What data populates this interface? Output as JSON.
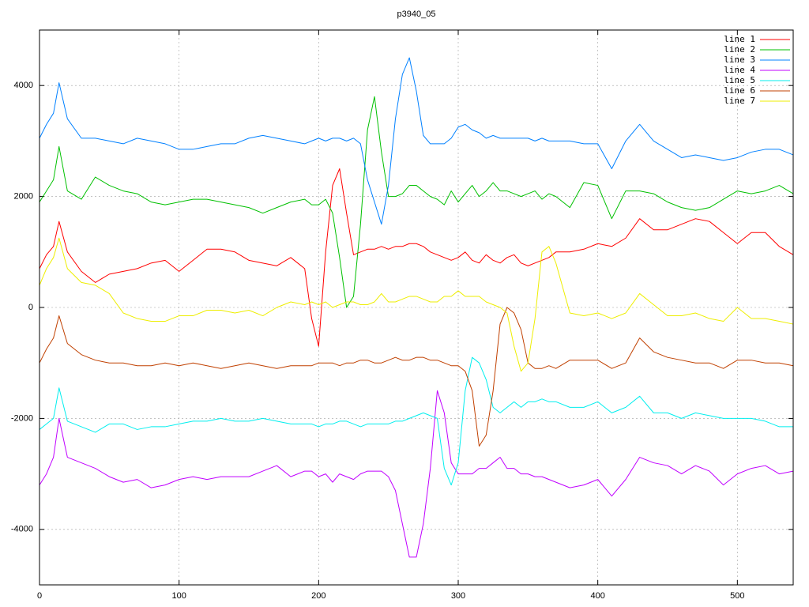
{
  "chart_data": {
    "type": "line",
    "title": "p3940_05",
    "x": [
      0,
      5,
      10,
      14,
      20,
      30,
      40,
      50,
      60,
      70,
      80,
      90,
      100,
      110,
      120,
      130,
      140,
      150,
      160,
      170,
      180,
      190,
      195,
      200,
      205,
      210,
      215,
      220,
      225,
      230,
      235,
      240,
      245,
      250,
      255,
      260,
      265,
      270,
      275,
      280,
      285,
      290,
      295,
      300,
      305,
      310,
      315,
      320,
      325,
      330,
      335,
      340,
      345,
      350,
      355,
      360,
      365,
      370,
      380,
      390,
      400,
      410,
      420,
      430,
      440,
      450,
      460,
      470,
      480,
      490,
      500,
      510,
      520,
      530,
      540
    ],
    "xlim": [
      0,
      540
    ],
    "xticks": [
      0,
      100,
      200,
      300,
      400,
      500
    ],
    "ylim": [
      -5000,
      5000
    ],
    "yticks": [
      -4000,
      -2000,
      0,
      2000,
      4000
    ],
    "grid": true,
    "legend": "top-right",
    "series": [
      {
        "name": "line 1",
        "color": "#ff0000",
        "values": [
          700,
          950,
          1100,
          1550,
          1000,
          650,
          450,
          600,
          650,
          700,
          800,
          850,
          650,
          850,
          1050,
          1050,
          1000,
          850,
          800,
          750,
          900,
          700,
          -200,
          -700,
          1000,
          2200,
          2500,
          1700,
          950,
          1000,
          1050,
          1050,
          1100,
          1050,
          1100,
          1100,
          1150,
          1150,
          1100,
          1000,
          950,
          900,
          850,
          900,
          1000,
          850,
          800,
          950,
          850,
          800,
          900,
          950,
          800,
          750,
          800,
          850,
          900,
          1000,
          1000,
          1050,
          1150,
          1100,
          1250,
          1600,
          1400,
          1400,
          1500,
          1600,
          1550,
          1350,
          1150,
          1350,
          1350,
          1100,
          950
        ]
      },
      {
        "name": "line 2",
        "color": "#00c000",
        "values": [
          1900,
          2100,
          2300,
          2900,
          2100,
          1950,
          2350,
          2200,
          2100,
          2050,
          1900,
          1850,
          1900,
          1950,
          1950,
          1900,
          1850,
          1800,
          1700,
          1800,
          1900,
          1950,
          1850,
          1850,
          1950,
          1700,
          900,
          0,
          200,
          1500,
          3200,
          3800,
          2800,
          2000,
          2000,
          2050,
          2200,
          2200,
          2100,
          2000,
          1950,
          1850,
          2100,
          1900,
          2050,
          2200,
          2000,
          2100,
          2250,
          2100,
          2100,
          2050,
          2000,
          2050,
          2100,
          1950,
          2050,
          2000,
          1800,
          2250,
          2200,
          1600,
          2100,
          2100,
          2050,
          1900,
          1800,
          1750,
          1800,
          1950,
          2100,
          2050,
          2100,
          2200,
          2050
        ]
      },
      {
        "name": "line 3",
        "color": "#0080ff",
        "values": [
          3050,
          3300,
          3500,
          4050,
          3400,
          3050,
          3050,
          3000,
          2950,
          3050,
          3000,
          2950,
          2850,
          2850,
          2900,
          2950,
          2950,
          3050,
          3100,
          3050,
          3000,
          2950,
          3000,
          3050,
          3000,
          3050,
          3050,
          3000,
          3050,
          2950,
          2300,
          1900,
          1500,
          2200,
          3400,
          4200,
          4500,
          3900,
          3100,
          2950,
          2950,
          2950,
          3050,
          3250,
          3300,
          3200,
          3150,
          3050,
          3100,
          3050,
          3050,
          3050,
          3050,
          3050,
          3000,
          3050,
          3000,
          3000,
          3000,
          2950,
          2950,
          2500,
          3000,
          3300,
          3000,
          2850,
          2700,
          2750,
          2700,
          2650,
          2700,
          2800,
          2850,
          2850,
          2750
        ]
      },
      {
        "name": "line 4",
        "color": "#c000ff",
        "values": [
          -3200,
          -3000,
          -2700,
          -2000,
          -2700,
          -2800,
          -2900,
          -3050,
          -3150,
          -3100,
          -3250,
          -3200,
          -3100,
          -3050,
          -3100,
          -3050,
          -3050,
          -3050,
          -2950,
          -2850,
          -3050,
          -2950,
          -2950,
          -3050,
          -3000,
          -3150,
          -3000,
          -3050,
          -3100,
          -3000,
          -2950,
          -2950,
          -2950,
          -3050,
          -3300,
          -3900,
          -4500,
          -4500,
          -3900,
          -2900,
          -1500,
          -1900,
          -2800,
          -3000,
          -3000,
          -3000,
          -2900,
          -2900,
          -2800,
          -2700,
          -2900,
          -2900,
          -3000,
          -3000,
          -3050,
          -3050,
          -3100,
          -3150,
          -3250,
          -3200,
          -3100,
          -3400,
          -3100,
          -2700,
          -2800,
          -2850,
          -3000,
          -2850,
          -2950,
          -3200,
          -3000,
          -2900,
          -2850,
          -3000,
          -2950
        ]
      },
      {
        "name": "line 5",
        "color": "#00eeee",
        "values": [
          -2200,
          -2100,
          -2000,
          -1450,
          -2050,
          -2150,
          -2250,
          -2100,
          -2100,
          -2200,
          -2150,
          -2150,
          -2100,
          -2050,
          -2050,
          -2000,
          -2050,
          -2050,
          -2000,
          -2050,
          -2100,
          -2100,
          -2100,
          -2150,
          -2100,
          -2100,
          -2050,
          -2050,
          -2100,
          -2150,
          -2100,
          -2100,
          -2100,
          -2100,
          -2050,
          -2050,
          -2000,
          -1950,
          -1900,
          -1950,
          -2000,
          -2900,
          -3200,
          -2800,
          -1500,
          -900,
          -1000,
          -1300,
          -1800,
          -1900,
          -1800,
          -1700,
          -1800,
          -1700,
          -1700,
          -1650,
          -1700,
          -1700,
          -1800,
          -1800,
          -1700,
          -1900,
          -1800,
          -1600,
          -1900,
          -1900,
          -2000,
          -1900,
          -1950,
          -2000,
          -2000,
          -2000,
          -2050,
          -2150,
          -2150
        ]
      },
      {
        "name": "line 6",
        "color": "#c04000",
        "values": [
          -1000,
          -750,
          -550,
          -150,
          -650,
          -850,
          -950,
          -1000,
          -1000,
          -1050,
          -1050,
          -1000,
          -1050,
          -1000,
          -1050,
          -1100,
          -1050,
          -1000,
          -1050,
          -1100,
          -1050,
          -1050,
          -1050,
          -1000,
          -1000,
          -1000,
          -1050,
          -1000,
          -1000,
          -950,
          -950,
          -1000,
          -1000,
          -950,
          -900,
          -950,
          -950,
          -900,
          -900,
          -950,
          -950,
          -1000,
          -1050,
          -1050,
          -1150,
          -1500,
          -2500,
          -2300,
          -1500,
          -300,
          0,
          -100,
          -400,
          -1000,
          -1100,
          -1100,
          -1050,
          -1100,
          -950,
          -950,
          -950,
          -1100,
          -1000,
          -550,
          -800,
          -900,
          -950,
          -1000,
          -1000,
          -1100,
          -950,
          -950,
          -1000,
          -1000,
          -1050
        ]
      },
      {
        "name": "line 7",
        "color": "#eeee00",
        "values": [
          400,
          700,
          900,
          1250,
          700,
          450,
          400,
          250,
          -100,
          -200,
          -250,
          -250,
          -150,
          -150,
          -50,
          -50,
          -100,
          -50,
          -150,
          0,
          100,
          50,
          100,
          50,
          100,
          0,
          50,
          100,
          100,
          50,
          50,
          100,
          250,
          100,
          100,
          150,
          200,
          200,
          150,
          100,
          100,
          200,
          200,
          300,
          200,
          200,
          200,
          100,
          50,
          0,
          -100,
          -700,
          -1150,
          -1000,
          -200,
          1000,
          1100,
          800,
          -100,
          -150,
          -100,
          -200,
          -100,
          250,
          50,
          -150,
          -150,
          -100,
          -200,
          -250,
          0,
          -200,
          -200,
          -250,
          -300
        ]
      }
    ]
  }
}
